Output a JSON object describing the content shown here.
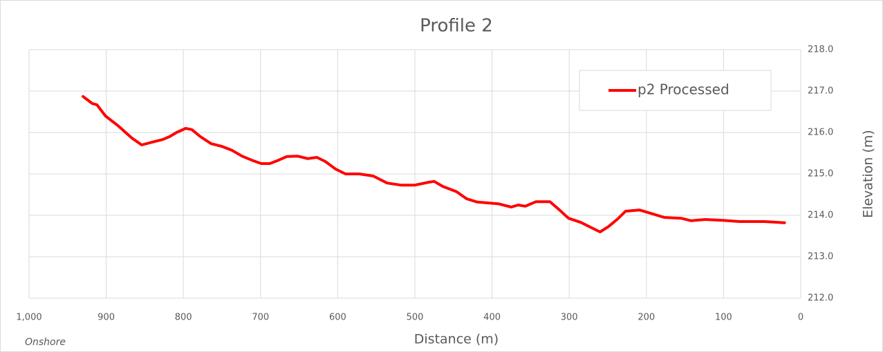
{
  "chart_data": {
    "type": "line",
    "title": "Profile 2",
    "x_label": "Distance (m)",
    "y_label": "Elevation (m)",
    "annotation": "Onshore",
    "x": [
      930,
      918,
      912,
      901,
      885,
      867,
      854,
      840,
      827,
      818,
      809,
      797,
      789,
      778,
      764,
      751,
      737,
      724,
      711,
      699,
      688,
      677,
      666,
      652,
      639,
      627,
      616,
      603,
      590,
      572,
      554,
      536,
      518,
      500,
      482,
      475,
      464,
      446,
      433,
      419,
      392,
      375,
      366,
      357,
      343,
      325,
      312,
      301,
      285,
      271,
      260,
      249,
      238,
      227,
      209,
      191,
      177,
      155,
      142,
      124,
      101,
      79,
      47,
      21
    ],
    "series": [
      {
        "name": "p2 Processed",
        "color": "#ff0000",
        "values": [
          216.87,
          216.7,
          216.67,
          216.4,
          216.17,
          215.87,
          215.7,
          215.77,
          215.83,
          215.9,
          216.0,
          216.1,
          216.07,
          215.9,
          215.73,
          215.67,
          215.57,
          215.43,
          215.33,
          215.25,
          215.25,
          215.33,
          215.42,
          215.43,
          215.37,
          215.4,
          215.3,
          215.12,
          215.0,
          215.0,
          214.95,
          214.78,
          214.73,
          214.73,
          214.8,
          214.82,
          214.7,
          214.57,
          214.4,
          214.32,
          214.28,
          214.2,
          214.25,
          214.22,
          214.33,
          214.33,
          214.12,
          213.93,
          213.83,
          213.7,
          213.6,
          213.73,
          213.9,
          214.1,
          214.13,
          214.03,
          213.95,
          213.93,
          213.87,
          213.9,
          213.88,
          213.85,
          213.85,
          213.82
        ]
      }
    ],
    "xlim": [
      1000,
      0
    ],
    "xticks": [
      {
        "value": 1000,
        "label": "1,000"
      },
      900,
      800,
      700,
      600,
      500,
      400,
      300,
      200,
      100,
      0
    ],
    "ylim": [
      212,
      218
    ],
    "yticks": [
      {
        "value": 212,
        "label": "212.0"
      },
      {
        "value": 213,
        "label": "213.0"
      },
      {
        "value": 214,
        "label": "214.0"
      },
      {
        "value": 215,
        "label": "215.0"
      },
      {
        "value": 216,
        "label": "216.0"
      },
      {
        "value": 217,
        "label": "217.0"
      },
      {
        "value": 218,
        "label": "218.0"
      }
    ],
    "grid": true,
    "legend": "upper right",
    "y_axis_side": "right"
  }
}
